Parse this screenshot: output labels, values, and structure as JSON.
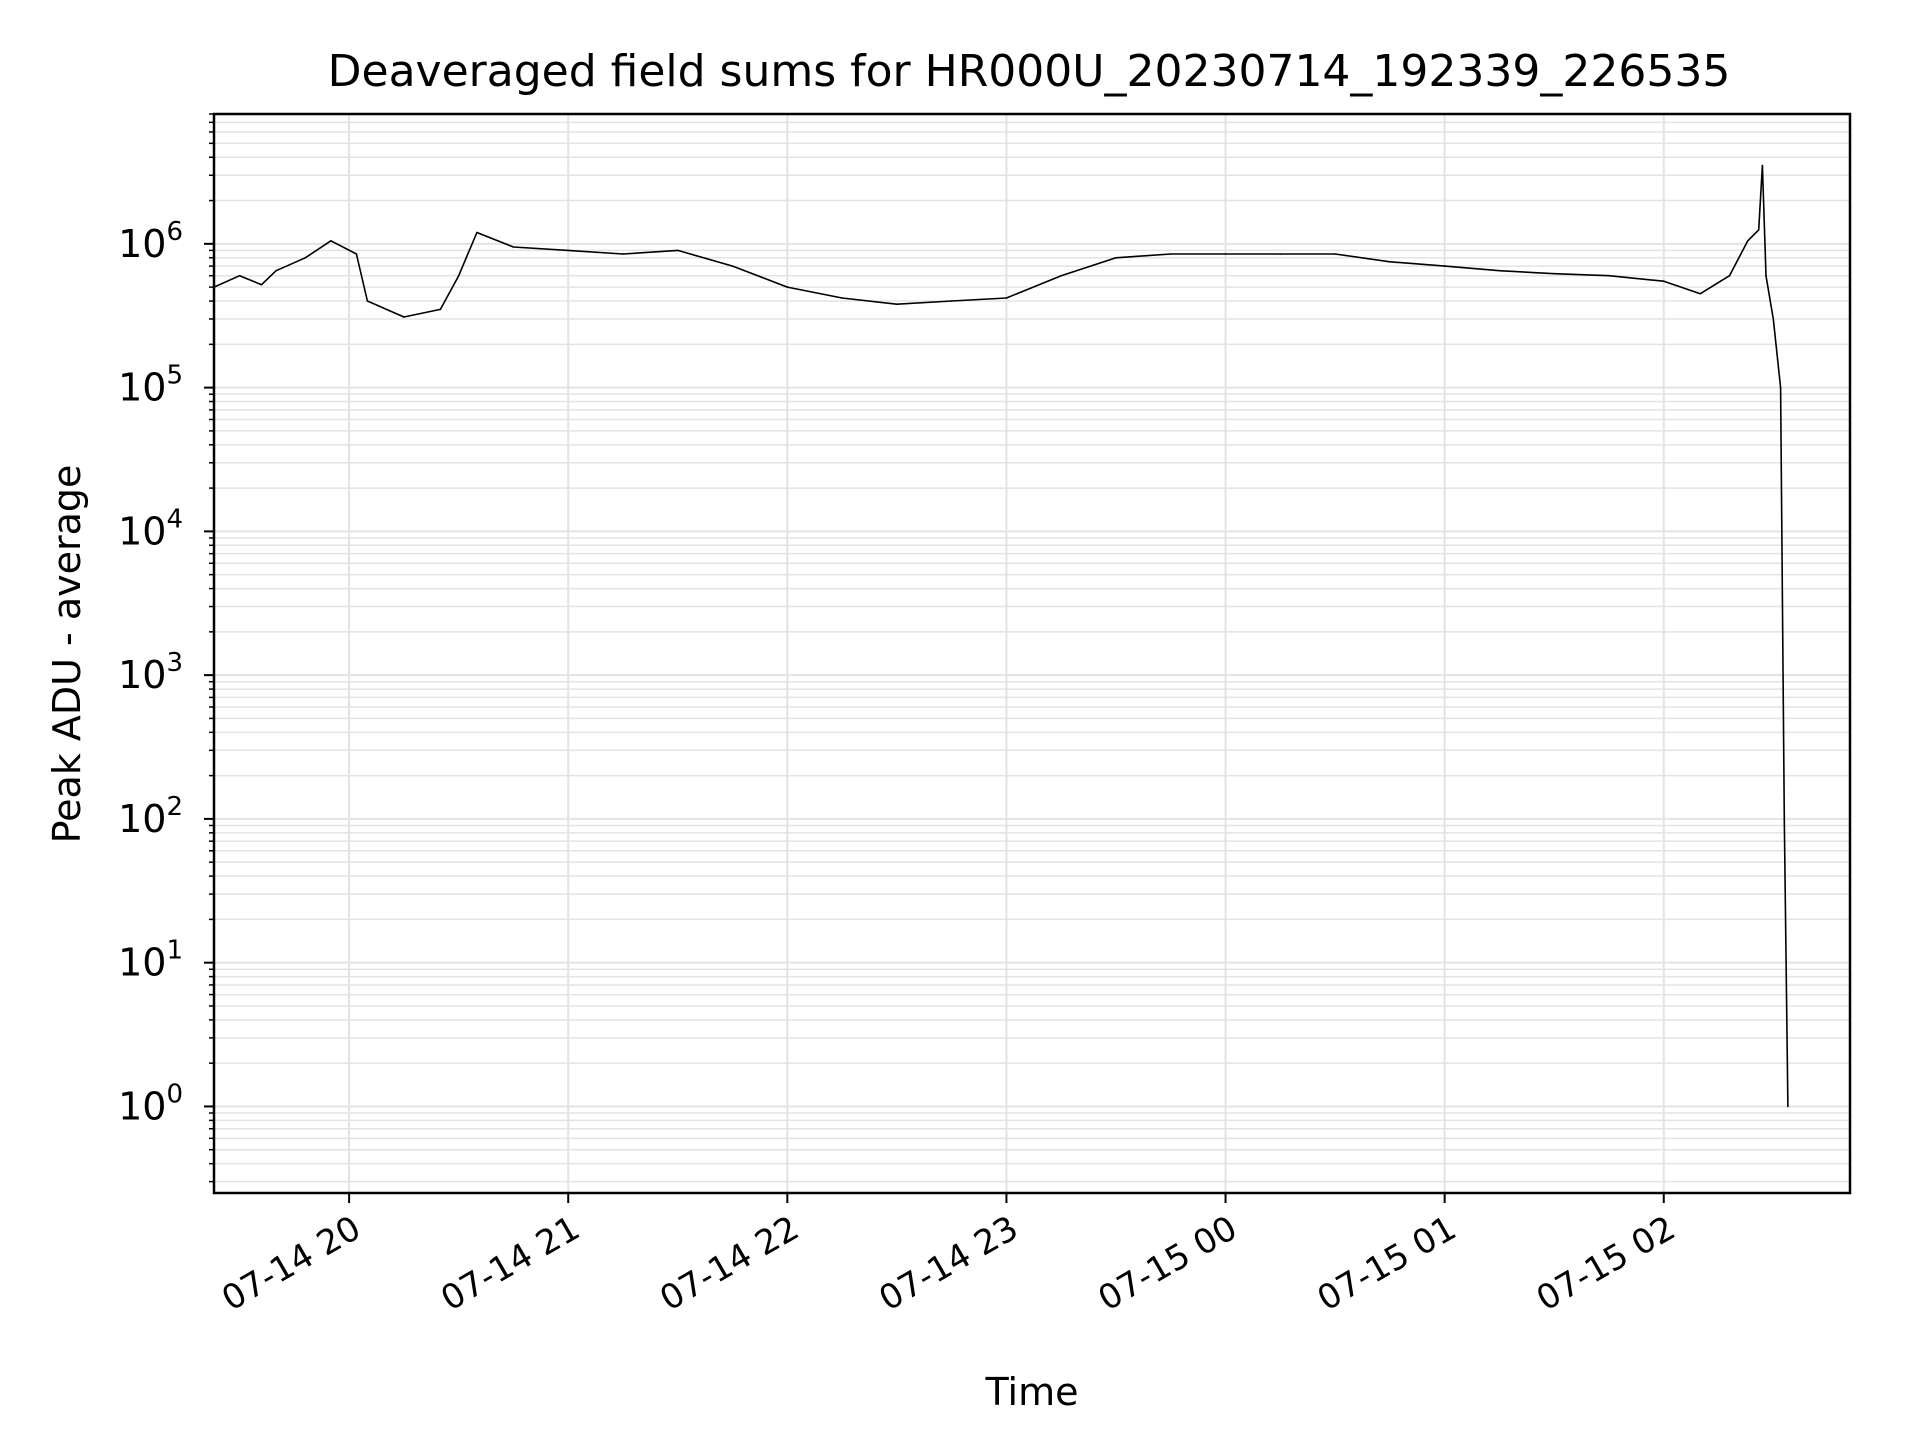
{
  "chart_data": {
    "type": "line",
    "title": "Deaveraged field sums for HR000U_20230714_192339_226535",
    "xlabel": "Time",
    "ylabel": "Peak ADU - average",
    "yscale": "log",
    "ylim": [
      0.25,
      8000000
    ],
    "xlim": [
      "2023-07-14 19:23",
      "2023-07-15 02:51"
    ],
    "grid": true,
    "legend": "none",
    "line_color": "#000000",
    "grid_color": "#e3e3e3",
    "yticks": [
      {
        "value": 1,
        "base": "10",
        "exp": "0"
      },
      {
        "value": 10,
        "base": "10",
        "exp": "1"
      },
      {
        "value": 100,
        "base": "10",
        "exp": "2"
      },
      {
        "value": 1000,
        "base": "10",
        "exp": "3"
      },
      {
        "value": 10000,
        "base": "10",
        "exp": "4"
      },
      {
        "value": 100000,
        "base": "10",
        "exp": "5"
      },
      {
        "value": 1000000,
        "base": "10",
        "exp": "6"
      }
    ],
    "xticks": [
      {
        "time": "2023-07-14 20:00",
        "label": "07-14 20"
      },
      {
        "time": "2023-07-14 21:00",
        "label": "07-14 21"
      },
      {
        "time": "2023-07-14 22:00",
        "label": "07-14 22"
      },
      {
        "time": "2023-07-14 23:00",
        "label": "07-14 23"
      },
      {
        "time": "2023-07-15 00:00",
        "label": "07-15 00"
      },
      {
        "time": "2023-07-15 01:00",
        "label": "07-15 01"
      },
      {
        "time": "2023-07-15 02:00",
        "label": "07-15 02"
      }
    ],
    "series": [
      {
        "points": [
          [
            "2023-07-14 19:23",
            500000
          ],
          [
            "2023-07-14 19:30",
            600000
          ],
          [
            "2023-07-14 19:36",
            520000
          ],
          [
            "2023-07-14 19:40",
            650000
          ],
          [
            "2023-07-14 19:48",
            800000
          ],
          [
            "2023-07-14 19:55",
            1050000
          ],
          [
            "2023-07-14 20:02",
            850000
          ],
          [
            "2023-07-14 20:05",
            400000
          ],
          [
            "2023-07-14 20:15",
            310000
          ],
          [
            "2023-07-14 20:25",
            350000
          ],
          [
            "2023-07-14 20:30",
            600000
          ],
          [
            "2023-07-14 20:35",
            1200000
          ],
          [
            "2023-07-14 20:45",
            950000
          ],
          [
            "2023-07-14 21:00",
            900000
          ],
          [
            "2023-07-14 21:15",
            850000
          ],
          [
            "2023-07-14 21:30",
            900000
          ],
          [
            "2023-07-14 21:45",
            700000
          ],
          [
            "2023-07-14 22:00",
            500000
          ],
          [
            "2023-07-14 22:15",
            420000
          ],
          [
            "2023-07-14 22:30",
            380000
          ],
          [
            "2023-07-14 22:45",
            400000
          ],
          [
            "2023-07-14 23:00",
            420000
          ],
          [
            "2023-07-14 23:15",
            600000
          ],
          [
            "2023-07-14 23:30",
            800000
          ],
          [
            "2023-07-14 23:45",
            850000
          ],
          [
            "2023-07-15 00:00",
            850000
          ],
          [
            "2023-07-15 00:15",
            850000
          ],
          [
            "2023-07-15 00:30",
            850000
          ],
          [
            "2023-07-15 00:45",
            750000
          ],
          [
            "2023-07-15 01:00",
            700000
          ],
          [
            "2023-07-15 01:15",
            650000
          ],
          [
            "2023-07-15 01:30",
            620000
          ],
          [
            "2023-07-15 01:45",
            600000
          ],
          [
            "2023-07-15 02:00",
            550000
          ],
          [
            "2023-07-15 02:10",
            450000
          ],
          [
            "2023-07-15 02:18",
            600000
          ],
          [
            "2023-07-15 02:23",
            1050000
          ],
          [
            "2023-07-15 02:26",
            1250000
          ],
          [
            "2023-07-15 02:27",
            3500000
          ],
          [
            "2023-07-15 02:28",
            600000
          ],
          [
            "2023-07-15 02:30",
            300000
          ],
          [
            "2023-07-15 02:32",
            100000
          ],
          [
            "2023-07-15 02:33",
            100
          ],
          [
            "2023-07-15 02:34",
            1
          ]
        ]
      }
    ]
  }
}
